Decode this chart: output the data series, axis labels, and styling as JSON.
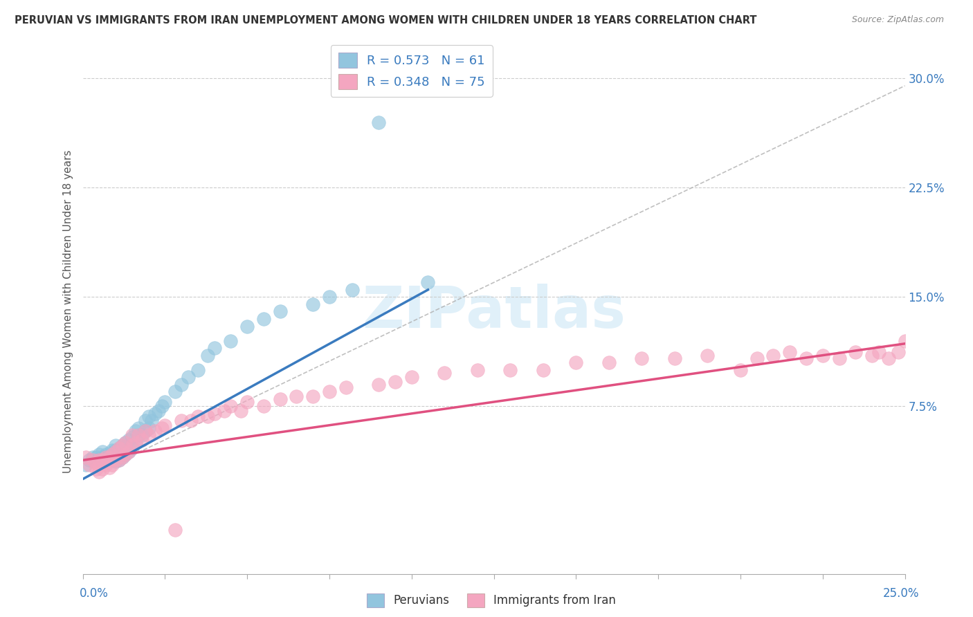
{
  "title": "PERUVIAN VS IMMIGRANTS FROM IRAN UNEMPLOYMENT AMONG WOMEN WITH CHILDREN UNDER 18 YEARS CORRELATION CHART",
  "source": "Source: ZipAtlas.com",
  "ylabel": "Unemployment Among Women with Children Under 18 years",
  "ylabel_ticks": [
    "7.5%",
    "15.0%",
    "22.5%",
    "30.0%"
  ],
  "ylabel_tick_vals": [
    0.075,
    0.15,
    0.225,
    0.3
  ],
  "xlim": [
    0.0,
    0.25
  ],
  "ylim": [
    -0.04,
    0.32
  ],
  "color_blue": "#92c5de",
  "color_pink": "#f4a6c0",
  "color_blue_line": "#3a7bbf",
  "color_pink_line": "#e05080",
  "color_dashed": "#b0b0b0",
  "peruvians_x": [
    0.001,
    0.002,
    0.003,
    0.004,
    0.005,
    0.005,
    0.006,
    0.006,
    0.007,
    0.007,
    0.008,
    0.008,
    0.009,
    0.009,
    0.009,
    0.01,
    0.01,
    0.01,
    0.01,
    0.01,
    0.011,
    0.011,
    0.011,
    0.012,
    0.012,
    0.012,
    0.013,
    0.013,
    0.014,
    0.014,
    0.015,
    0.015,
    0.016,
    0.016,
    0.017,
    0.017,
    0.018,
    0.019,
    0.019,
    0.02,
    0.02,
    0.021,
    0.022,
    0.023,
    0.024,
    0.025,
    0.028,
    0.03,
    0.032,
    0.035,
    0.038,
    0.04,
    0.045,
    0.05,
    0.055,
    0.06,
    0.07,
    0.075,
    0.082,
    0.09,
    0.105
  ],
  "peruvians_y": [
    0.035,
    0.038,
    0.04,
    0.04,
    0.038,
    0.042,
    0.04,
    0.044,
    0.038,
    0.042,
    0.039,
    0.043,
    0.038,
    0.04,
    0.045,
    0.037,
    0.04,
    0.042,
    0.045,
    0.048,
    0.038,
    0.042,
    0.046,
    0.04,
    0.044,
    0.048,
    0.042,
    0.05,
    0.044,
    0.052,
    0.046,
    0.054,
    0.05,
    0.058,
    0.055,
    0.06,
    0.055,
    0.058,
    0.065,
    0.06,
    0.068,
    0.065,
    0.07,
    0.072,
    0.075,
    0.078,
    0.085,
    0.09,
    0.095,
    0.1,
    0.11,
    0.115,
    0.12,
    0.13,
    0.135,
    0.14,
    0.145,
    0.15,
    0.155,
    0.27,
    0.16
  ],
  "iran_x": [
    0.001,
    0.002,
    0.003,
    0.004,
    0.004,
    0.005,
    0.005,
    0.006,
    0.006,
    0.007,
    0.007,
    0.008,
    0.008,
    0.009,
    0.009,
    0.01,
    0.01,
    0.011,
    0.011,
    0.012,
    0.012,
    0.013,
    0.013,
    0.014,
    0.015,
    0.015,
    0.016,
    0.017,
    0.018,
    0.019,
    0.02,
    0.022,
    0.024,
    0.025,
    0.028,
    0.03,
    0.033,
    0.035,
    0.038,
    0.04,
    0.043,
    0.045,
    0.048,
    0.05,
    0.055,
    0.06,
    0.065,
    0.07,
    0.075,
    0.08,
    0.09,
    0.095,
    0.1,
    0.11,
    0.12,
    0.13,
    0.14,
    0.15,
    0.16,
    0.17,
    0.18,
    0.19,
    0.2,
    0.205,
    0.21,
    0.215,
    0.22,
    0.225,
    0.23,
    0.235,
    0.24,
    0.242,
    0.245,
    0.248,
    0.25
  ],
  "iran_y": [
    0.04,
    0.035,
    0.038,
    0.032,
    0.036,
    0.03,
    0.038,
    0.032,
    0.038,
    0.035,
    0.04,
    0.033,
    0.04,
    0.035,
    0.042,
    0.038,
    0.044,
    0.038,
    0.046,
    0.04,
    0.048,
    0.042,
    0.05,
    0.044,
    0.048,
    0.055,
    0.05,
    0.055,
    0.052,
    0.058,
    0.055,
    0.058,
    0.06,
    0.062,
    -0.01,
    0.065,
    0.065,
    0.068,
    0.068,
    0.07,
    0.072,
    0.075,
    0.072,
    0.078,
    0.075,
    0.08,
    0.082,
    0.082,
    0.085,
    0.088,
    0.09,
    0.092,
    0.095,
    0.098,
    0.1,
    0.1,
    0.1,
    0.105,
    0.105,
    0.108,
    0.108,
    0.11,
    0.1,
    0.108,
    0.11,
    0.112,
    0.108,
    0.11,
    0.108,
    0.112,
    0.11,
    0.112,
    0.108,
    0.112,
    0.12
  ]
}
